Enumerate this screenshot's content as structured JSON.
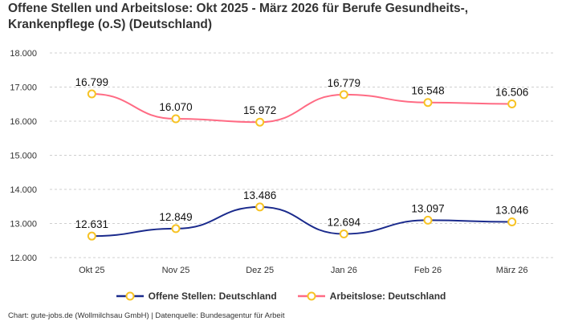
{
  "title": "Offene Stellen und Arbeitslose: Okt 2025 - März 2026 für Berufe Gesundheits-, Krankenpflege (o.S) (Deutschland)",
  "footer": "Chart: gute-jobs.de (Wollmilchsau GmbH) | Datenquelle: Bundesagentur für Arbeit",
  "chart_data": {
    "type": "line",
    "title": "Offene Stellen und Arbeitslose: Okt 2025 - März 2026 für Berufe Gesundheits-, Krankenpflege (o.S) (Deutschland)",
    "categories": [
      "Okt 25",
      "Nov 25",
      "Dez 25",
      "Jan 26",
      "Feb 26",
      "März 26"
    ],
    "ylim": [
      12000,
      18000
    ],
    "yticks": [
      12000,
      13000,
      14000,
      15000,
      16000,
      17000,
      18000
    ],
    "ytick_labels": [
      "12.000",
      "13.000",
      "14.000",
      "15.000",
      "16.000",
      "17.000",
      "18.000"
    ],
    "grid": true,
    "legend_position": "bottom",
    "series": [
      {
        "name": "Offene Stellen: Deutschland",
        "color": "#1a2a8c",
        "values": [
          12631,
          12849,
          13486,
          12694,
          13097,
          13046
        ],
        "labels": [
          "12.631",
          "12.849",
          "13.486",
          "12.694",
          "13.097",
          "13.046"
        ]
      },
      {
        "name": "Arbeitslose: Deutschland",
        "color": "#ff6b84",
        "values": [
          16799,
          16070,
          15972,
          16779,
          16548,
          16506
        ],
        "labels": [
          "16.799",
          "16.070",
          "15.972",
          "16.779",
          "16.548",
          "16.506"
        ]
      }
    ],
    "marker_color": "#f7c325"
  }
}
